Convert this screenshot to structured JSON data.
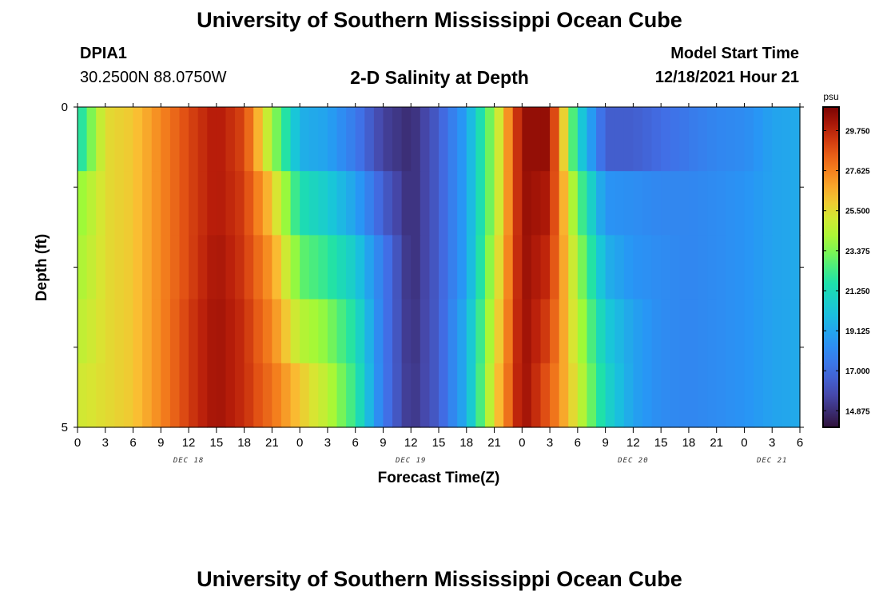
{
  "header": {
    "title": "University of Southern Mississippi Ocean Cube",
    "footer_title": "University of Southern Mississippi Ocean Cube",
    "station": "DPIA1",
    "coords": "30.2500N  88.0750W",
    "plot_title": "2-D Salinity at Depth",
    "model_start_label": "Model Start Time",
    "model_start_value": "12/18/2021 Hour 21"
  },
  "chart_data": {
    "type": "heatmap",
    "title": "2-D Salinity at Depth",
    "xlabel": "Forecast Time(Z)",
    "ylabel": "Depth (ft)",
    "y_tick_labels": [
      "0",
      "5"
    ],
    "ylim": [
      0,
      5
    ],
    "x_tick_labels": [
      "0",
      "3",
      "6",
      "9",
      "12",
      "15",
      "18",
      "21",
      "0",
      "3",
      "6",
      "9",
      "12",
      "15",
      "18",
      "21",
      "0",
      "3",
      "6",
      "9",
      "12",
      "15",
      "18",
      "21",
      "0",
      "3",
      "6"
    ],
    "date_labels": [
      {
        "label": "DEC 18",
        "hour": 12
      },
      {
        "label": "DEC 19",
        "hour": 36
      },
      {
        "label": "DEC 20",
        "hour": 60
      },
      {
        "label": "DEC 21",
        "hour": 75
      }
    ],
    "xlim_hours": [
      0,
      78
    ],
    "colorbar": {
      "unit": "psu",
      "min": 14.0,
      "max": 31.0,
      "tick_labels": [
        "29.750",
        "27.625",
        "25.500",
        "23.375",
        "21.250",
        "19.125",
        "17.000",
        "14.875"
      ],
      "tick_values": [
        29.75,
        27.625,
        25.5,
        23.375,
        21.25,
        19.125,
        17.0,
        14.875
      ]
    },
    "depth_layers": [
      0.5,
      1.5,
      2.5,
      3.5,
      4.5
    ],
    "layer_breaks_hours": [
      0,
      3,
      6,
      9,
      12,
      15,
      18,
      21,
      24,
      27,
      30,
      33,
      36,
      39,
      42,
      45,
      48,
      51,
      54,
      57,
      60,
      63,
      66,
      69,
      72,
      75,
      78
    ],
    "salinity_profiles": [
      [
        21.2,
        25.5,
        26.0,
        27.5,
        29.0,
        30.0,
        29.0,
        24.0,
        19.5,
        19.0,
        17.5,
        15.5,
        14.8,
        16.5,
        19.0,
        24.0,
        30.5,
        30.5,
        21.0,
        16.5,
        16.5,
        17.0,
        17.5,
        18.0,
        18.2,
        19.0,
        19.3
      ],
      [
        23.5,
        25.5,
        26.0,
        27.5,
        29.0,
        30.0,
        29.2,
        26.0,
        21.5,
        20.5,
        19.0,
        16.5,
        14.8,
        16.5,
        19.0,
        24.0,
        30.5,
        30.0,
        23.0,
        18.5,
        18.3,
        18.0,
        18.0,
        18.2,
        18.5,
        19.0,
        19.3
      ],
      [
        24.0,
        25.5,
        26.0,
        27.5,
        29.0,
        30.2,
        29.3,
        27.0,
        23.0,
        22.0,
        20.5,
        17.5,
        14.8,
        16.5,
        19.0,
        24.5,
        30.5,
        29.5,
        24.0,
        19.5,
        18.5,
        18.2,
        18.0,
        18.2,
        18.5,
        19.0,
        19.3
      ],
      [
        24.5,
        25.5,
        26.0,
        27.5,
        29.2,
        30.3,
        29.5,
        27.5,
        24.5,
        23.5,
        21.5,
        17.5,
        14.9,
        16.5,
        19.5,
        25.0,
        30.5,
        29.0,
        24.5,
        20.5,
        19.0,
        18.2,
        18.0,
        18.2,
        18.5,
        19.0,
        19.3
      ],
      [
        25.0,
        25.5,
        26.0,
        27.5,
        29.2,
        30.3,
        29.5,
        28.0,
        26.0,
        24.5,
        22.0,
        17.5,
        15.0,
        16.5,
        19.5,
        25.5,
        30.5,
        28.5,
        25.0,
        21.0,
        19.0,
        18.2,
        18.0,
        18.2,
        18.5,
        19.0,
        19.3
      ]
    ],
    "grid": false,
    "legend": "right colorbar"
  }
}
